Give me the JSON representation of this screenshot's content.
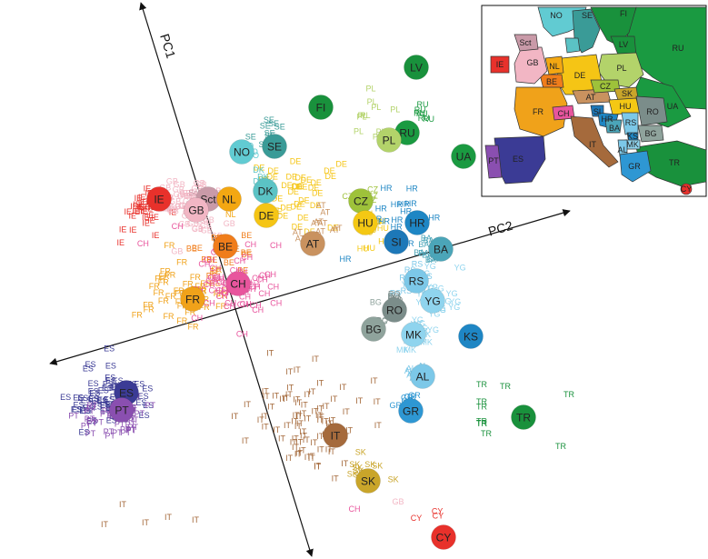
{
  "axes": {
    "pc1_label": "PC1",
    "pc2_label": "PC2"
  },
  "colors": {
    "IE": "#e8312b",
    "GB": "#f2b6c4",
    "Sct": "#c99aa8",
    "NL": "#f3a712",
    "BE": "#f07d1b",
    "FR": "#f0a21a",
    "CH": "#e8559d",
    "DE": "#f5c515",
    "AT": "#c9925f",
    "DK": "#5bc3c5",
    "NO": "#61cbd2",
    "SE": "#3a9b97",
    "FI": "#19913c",
    "LV": "#19913c",
    "RU": "#1a9a41",
    "UA": "#1a9a41",
    "PL": "#b3d36a",
    "CZ": "#9ec23a",
    "HU": "#f4c814",
    "SI": "#1d78b8",
    "HR": "#1e86c4",
    "BA": "#4ba5b8",
    "RS": "#7cc8e8",
    "YG": "#8fd4ee",
    "RO": "#7b8d8a",
    "BG": "#8fa39c",
    "MK": "#8fd4ee",
    "KS": "#1e86c4",
    "AL": "#7cc8e8",
    "GR": "#2e97d3",
    "TR": "#19913c",
    "IT": "#a56a3c",
    "SK": "#c9a52a",
    "ES": "#3b3b95",
    "PT": "#8a4fb0",
    "CY": "#e8312b"
  },
  "centroids": [
    {
      "code": "LV"
    },
    {
      "code": "FI"
    },
    {
      "code": "RU"
    },
    {
      "code": "PL"
    },
    {
      "code": "UA"
    },
    {
      "code": "SE"
    },
    {
      "code": "NO"
    },
    {
      "code": "DK"
    },
    {
      "code": "IE"
    },
    {
      "code": "Sct"
    },
    {
      "code": "GB"
    },
    {
      "code": "NL"
    },
    {
      "code": "DE"
    },
    {
      "code": "CZ"
    },
    {
      "code": "HU"
    },
    {
      "code": "HR"
    },
    {
      "code": "SI"
    },
    {
      "code": "BA"
    },
    {
      "code": "AT"
    },
    {
      "code": "BE"
    },
    {
      "code": "CH"
    },
    {
      "code": "FR"
    },
    {
      "code": "RS"
    },
    {
      "code": "YG"
    },
    {
      "code": "RO"
    },
    {
      "code": "BG"
    },
    {
      "code": "MK"
    },
    {
      "code": "KS"
    },
    {
      "code": "AL"
    },
    {
      "code": "GR"
    },
    {
      "code": "TR"
    },
    {
      "code": "ES"
    },
    {
      "code": "PT"
    },
    {
      "code": "IT"
    },
    {
      "code": "SK"
    },
    {
      "code": "CY"
    }
  ],
  "map_labels": [
    "NO",
    "SE",
    "FI",
    "Sct",
    "GB",
    "IE",
    "NL",
    "DE",
    "PL",
    "LV",
    "RU",
    "UA",
    "BE",
    "CZ",
    "SK",
    "AT",
    "HU",
    "FR",
    "CH",
    "SI",
    "HR",
    "BA",
    "RS",
    "RO",
    "KS",
    "MK",
    "BG",
    "IT",
    "AL",
    "GR",
    "ES",
    "PT",
    "TR",
    "CY"
  ]
}
